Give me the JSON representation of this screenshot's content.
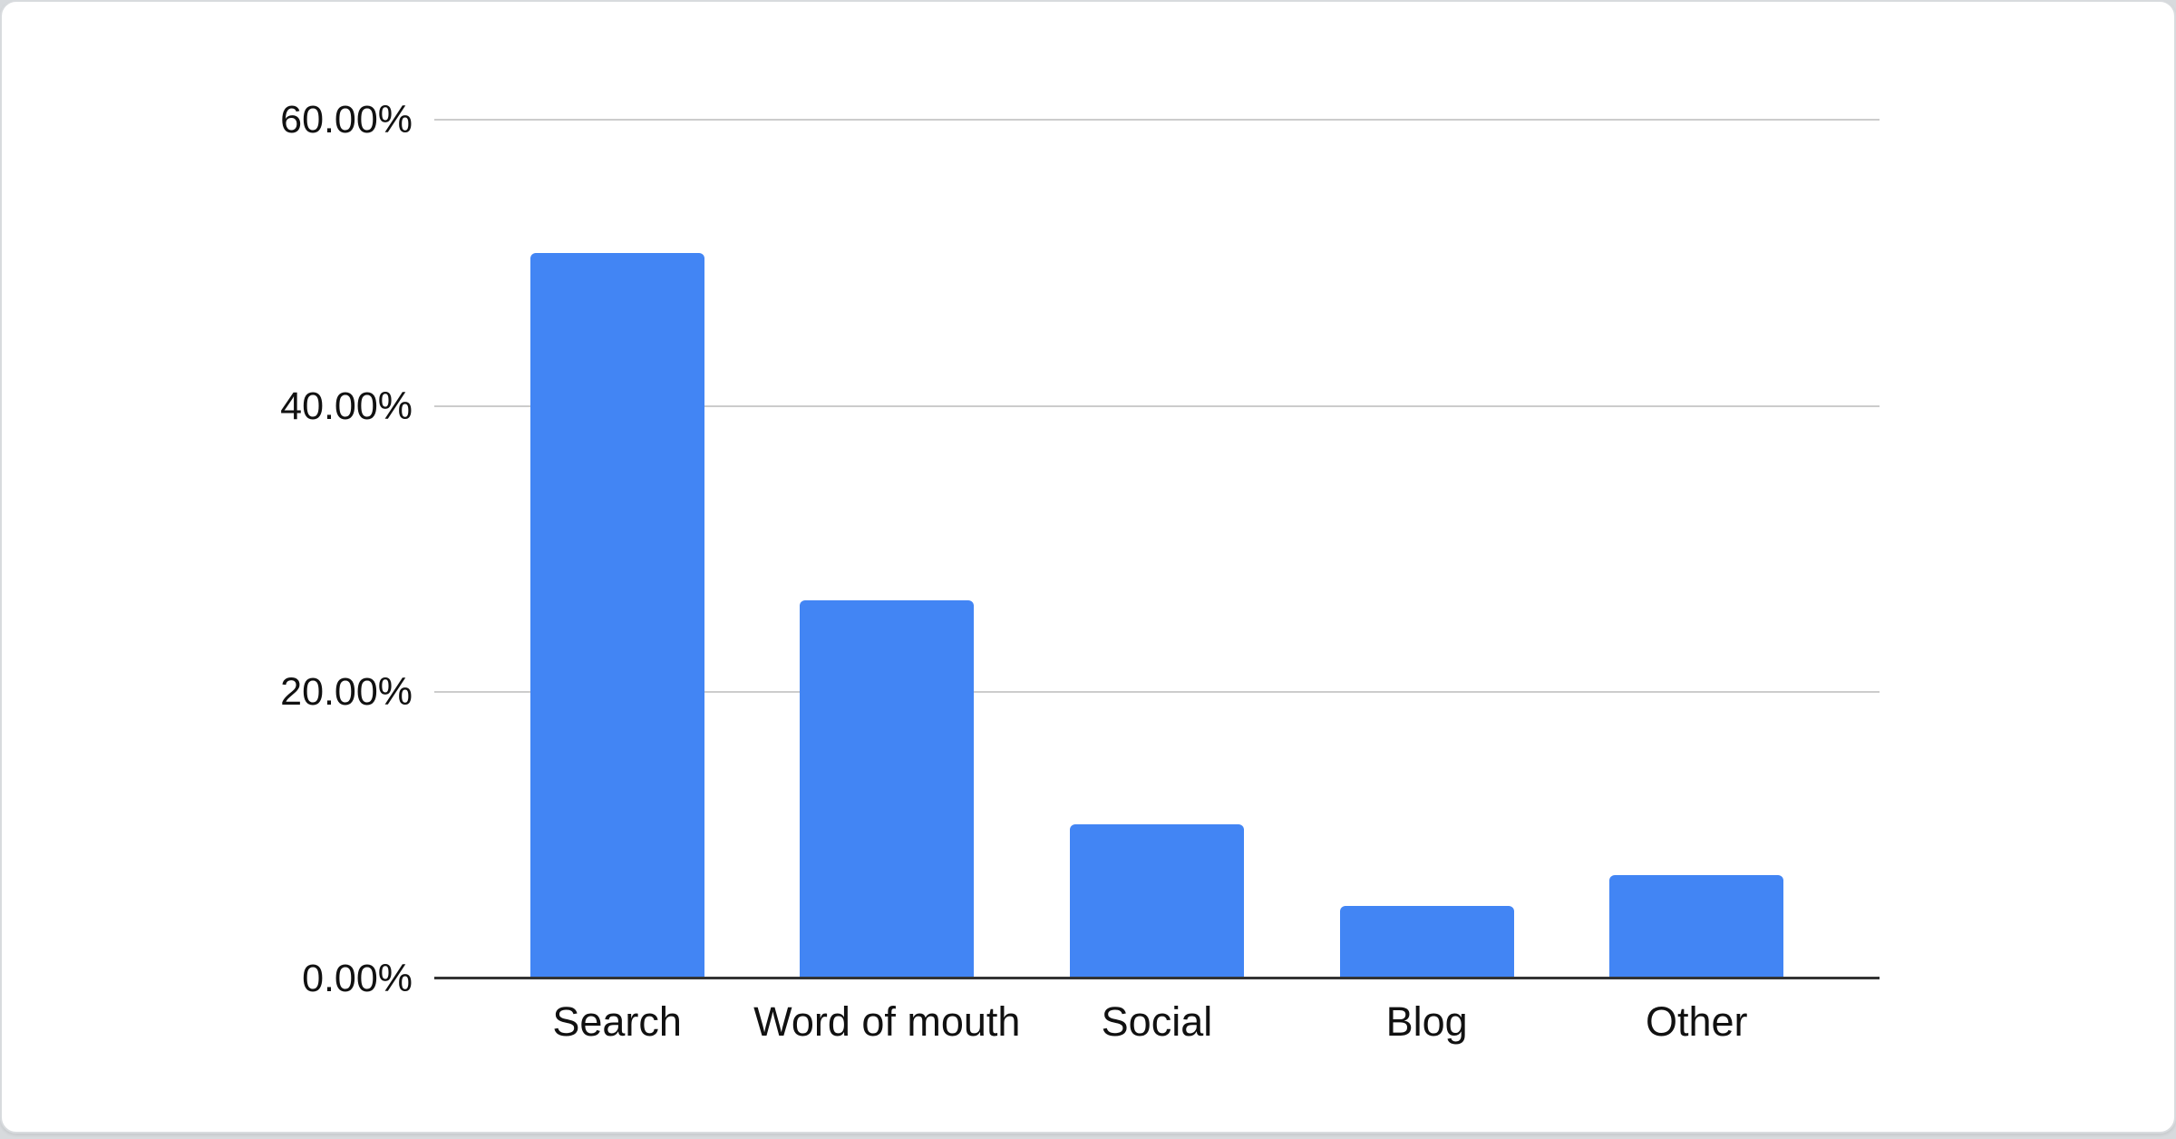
{
  "chart_data": {
    "type": "bar",
    "categories": [
      "Search",
      "Word of mouth",
      "Social",
      "Blog",
      "Other"
    ],
    "values": [
      50.7,
      26.4,
      10.8,
      5.1,
      7.2
    ],
    "value_unit": "%",
    "ytick_labels": [
      "60.00%",
      "40.00%",
      "20.00%",
      "0.00%"
    ],
    "ylim": [
      0,
      60
    ],
    "grid": "horizontal-gridlines-on",
    "legend_position": "none",
    "bar_color": "#4285f4",
    "gridline_color": "#cccccc",
    "axis_line_color": "#333333",
    "tick_label_color": "#111111",
    "card_background": "#ffffff",
    "card_border_color": "#d8dbde"
  }
}
